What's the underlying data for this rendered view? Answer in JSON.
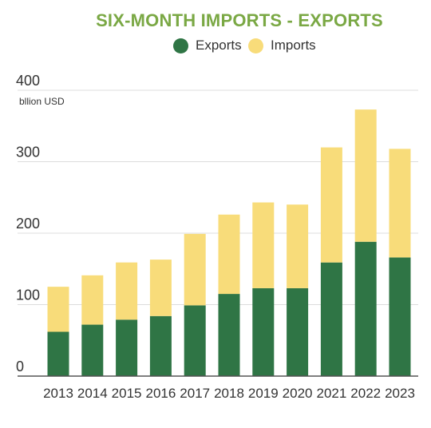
{
  "chart_data": {
    "type": "bar",
    "stacked": true,
    "title": "SIX-MONTH IMPORTS - EXPORTS",
    "unit_label": "bllion USD",
    "categories": [
      "2013",
      "2014",
      "2015",
      "2016",
      "2017",
      "2018",
      "2019",
      "2020",
      "2021",
      "2022",
      "2023"
    ],
    "series": [
      {
        "name": "Exports",
        "color": "#2f7545",
        "values": [
          62,
          72,
          79,
          84,
          99,
          115,
          123,
          123,
          159,
          188,
          166
        ]
      },
      {
        "name": "Imports",
        "color": "#f8dc7a",
        "values": [
          63,
          69,
          80,
          79,
          100,
          111,
          120,
          117,
          161,
          185,
          152
        ]
      }
    ],
    "ylim": [
      0,
      400
    ],
    "yticks": [
      0,
      100,
      200,
      300,
      400
    ],
    "grid": true,
    "legend_position": "top-center",
    "title_color": "#7aa844"
  }
}
